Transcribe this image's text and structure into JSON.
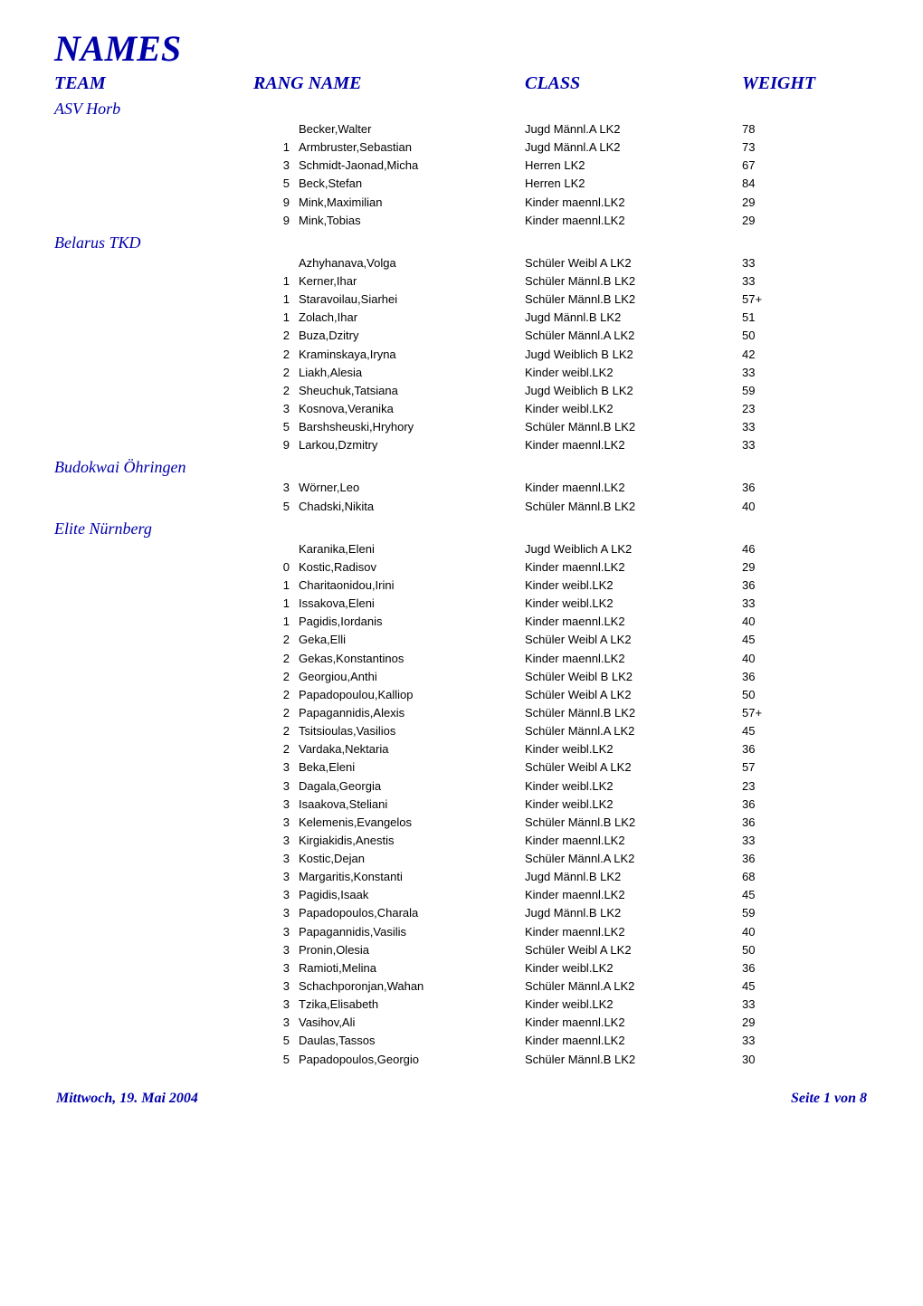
{
  "title": "NAMES",
  "headers": {
    "team": "TEAM",
    "rang_name": "RANG NAME",
    "class": "CLASS",
    "weight": "WEIGHT"
  },
  "footer": {
    "left": "Mittwoch, 19. Mai 2004",
    "right": "Seite 1 von 8"
  },
  "colors": {
    "accent": "#0000aa",
    "text": "#000000",
    "background": "#ffffff"
  },
  "teams": [
    {
      "name": "ASV Horb",
      "rows": [
        {
          "rang": "",
          "name": "Becker,Walter",
          "class": "Jugd Männl.A LK2",
          "weight": "78"
        },
        {
          "rang": "1",
          "name": "Armbruster,Sebastian",
          "class": "Jugd Männl.A LK2",
          "weight": "73"
        },
        {
          "rang": "3",
          "name": "Schmidt-Jaonad,Micha",
          "class": "Herren LK2",
          "weight": "67"
        },
        {
          "rang": "5",
          "name": "Beck,Stefan",
          "class": "Herren LK2",
          "weight": "84"
        },
        {
          "rang": "9",
          "name": "Mink,Maximilian",
          "class": "Kinder maennl.LK2",
          "weight": "29"
        },
        {
          "rang": "9",
          "name": "Mink,Tobias",
          "class": "Kinder maennl.LK2",
          "weight": "29"
        }
      ]
    },
    {
      "name": "Belarus TKD",
      "rows": [
        {
          "rang": "",
          "name": "Azhyhanava,Volga",
          "class": "Schüler Weibl A LK2",
          "weight": "33"
        },
        {
          "rang": "1",
          "name": "Kerner,Ihar",
          "class": "Schüler Männl.B LK2",
          "weight": "33"
        },
        {
          "rang": "1",
          "name": "Staravoilau,Siarhei",
          "class": "Schüler Männl.B LK2",
          "weight": "57+"
        },
        {
          "rang": "1",
          "name": "Zolach,Ihar",
          "class": "Jugd Männl.B LK2",
          "weight": "51"
        },
        {
          "rang": "2",
          "name": "Buza,Dzitry",
          "class": "Schüler Männl.A LK2",
          "weight": "50"
        },
        {
          "rang": "2",
          "name": "Kraminskaya,Iryna",
          "class": "Jugd Weiblich B LK2",
          "weight": "42"
        },
        {
          "rang": "2",
          "name": "Liakh,Alesia",
          "class": "Kinder weibl.LK2",
          "weight": "33"
        },
        {
          "rang": "2",
          "name": "Sheuchuk,Tatsiana",
          "class": "Jugd Weiblich B LK2",
          "weight": "59"
        },
        {
          "rang": "3",
          "name": "Kosnova,Veranika",
          "class": "Kinder weibl.LK2",
          "weight": "23"
        },
        {
          "rang": "5",
          "name": "Barshsheuski,Hryhory",
          "class": "Schüler Männl.B LK2",
          "weight": "33"
        },
        {
          "rang": "9",
          "name": "Larkou,Dzmitry",
          "class": "Kinder maennl.LK2",
          "weight": "33"
        }
      ]
    },
    {
      "name": "Budokwai Öhringen",
      "rows": [
        {
          "rang": "3",
          "name": "Wörner,Leo",
          "class": "Kinder maennl.LK2",
          "weight": "36"
        },
        {
          "rang": "5",
          "name": "Chadski,Nikita",
          "class": "Schüler Männl.B LK2",
          "weight": "40"
        }
      ]
    },
    {
      "name": "Elite Nürnberg",
      "rows": [
        {
          "rang": "",
          "name": "Karanika,Eleni",
          "class": "Jugd Weiblich A LK2",
          "weight": "46"
        },
        {
          "rang": "0",
          "name": "Kostic,Radisov",
          "class": "Kinder maennl.LK2",
          "weight": "29"
        },
        {
          "rang": "1",
          "name": "Charitaonidou,Irini",
          "class": "Kinder weibl.LK2",
          "weight": "36"
        },
        {
          "rang": "1",
          "name": "Issakova,Eleni",
          "class": "Kinder weibl.LK2",
          "weight": "33"
        },
        {
          "rang": "1",
          "name": "Pagidis,Iordanis",
          "class": "Kinder maennl.LK2",
          "weight": "40"
        },
        {
          "rang": "2",
          "name": "Geka,Elli",
          "class": "Schüler Weibl A LK2",
          "weight": "45"
        },
        {
          "rang": "2",
          "name": "Gekas,Konstantinos",
          "class": "Kinder maennl.LK2",
          "weight": "40"
        },
        {
          "rang": "2",
          "name": "Georgiou,Anthi",
          "class": "Schüler Weibl B LK2",
          "weight": "36"
        },
        {
          "rang": "2",
          "name": "Papadopoulou,Kalliop",
          "class": "Schüler Weibl A LK2",
          "weight": "50"
        },
        {
          "rang": "2",
          "name": "Papagannidis,Alexis",
          "class": "Schüler Männl.B LK2",
          "weight": "57+"
        },
        {
          "rang": "2",
          "name": "Tsitsioulas,Vasilios",
          "class": "Schüler Männl.A LK2",
          "weight": "45"
        },
        {
          "rang": "2",
          "name": "Vardaka,Nektaria",
          "class": "Kinder weibl.LK2",
          "weight": "36"
        },
        {
          "rang": "3",
          "name": "Beka,Eleni",
          "class": "Schüler Weibl A LK2",
          "weight": "57"
        },
        {
          "rang": "3",
          "name": "Dagala,Georgia",
          "class": "Kinder weibl.LK2",
          "weight": "23"
        },
        {
          "rang": "3",
          "name": "Isaakova,Steliani",
          "class": "Kinder weibl.LK2",
          "weight": "36"
        },
        {
          "rang": "3",
          "name": "Kelemenis,Evangelos",
          "class": "Schüler Männl.B LK2",
          "weight": "36"
        },
        {
          "rang": "3",
          "name": "Kirgiakidis,Anestis",
          "class": "Kinder maennl.LK2",
          "weight": "33"
        },
        {
          "rang": "3",
          "name": "Kostic,Dejan",
          "class": "Schüler Männl.A LK2",
          "weight": "36"
        },
        {
          "rang": "3",
          "name": "Margaritis,Konstanti",
          "class": "Jugd Männl.B LK2",
          "weight": "68"
        },
        {
          "rang": "3",
          "name": "Pagidis,Isaak",
          "class": "Kinder maennl.LK2",
          "weight": "45"
        },
        {
          "rang": "3",
          "name": "Papadopoulos,Charala",
          "class": "Jugd Männl.B LK2",
          "weight": "59"
        },
        {
          "rang": "3",
          "name": "Papagannidis,Vasilis",
          "class": "Kinder maennl.LK2",
          "weight": "40"
        },
        {
          "rang": "3",
          "name": "Pronin,Olesia",
          "class": "Schüler Weibl A LK2",
          "weight": "50"
        },
        {
          "rang": "3",
          "name": "Ramioti,Melina",
          "class": "Kinder weibl.LK2",
          "weight": "36"
        },
        {
          "rang": "3",
          "name": "Schachporonjan,Wahan",
          "class": "Schüler Männl.A LK2",
          "weight": "45"
        },
        {
          "rang": "3",
          "name": "Tzika,Elisabeth",
          "class": "Kinder weibl.LK2",
          "weight": "33"
        },
        {
          "rang": "3",
          "name": "Vasihov,Ali",
          "class": "Kinder maennl.LK2",
          "weight": "29"
        },
        {
          "rang": "5",
          "name": "Daulas,Tassos",
          "class": "Kinder maennl.LK2",
          "weight": "33"
        },
        {
          "rang": "5",
          "name": "Papadopoulos,Georgio",
          "class": "Schüler Männl.B LK2",
          "weight": "30"
        }
      ]
    }
  ]
}
